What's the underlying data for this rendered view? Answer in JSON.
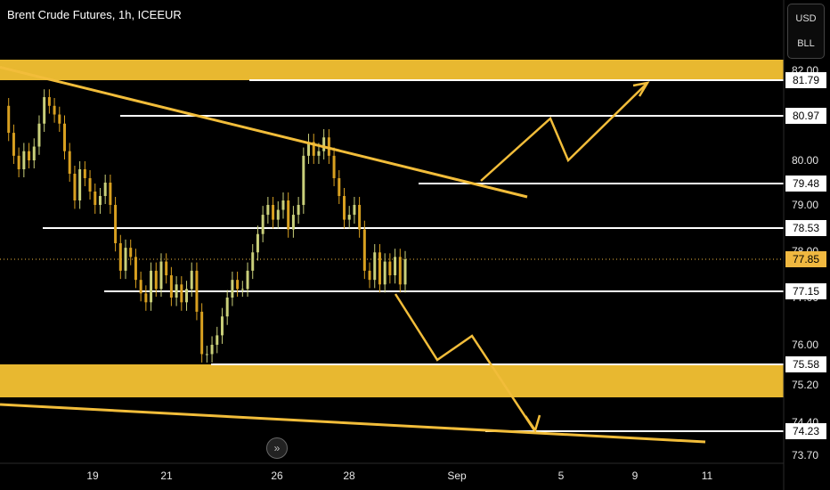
{
  "header": {
    "title": "Brent Crude Futures, 1h, ICEEUR"
  },
  "currency_box": {
    "unit": "USD",
    "measure": "BLL"
  },
  "nav": {
    "icon": "forward-arrows-icon"
  },
  "colors": {
    "zone": "#e8b830",
    "trend": "#f2bd3a",
    "level": "#ffffff",
    "bull": "#c9cf7a",
    "bear": "#d8a020",
    "current": "#f0b840"
  },
  "chart_data": {
    "type": "line",
    "symbol": "Brent Crude Futures",
    "timeframe": "1h",
    "exchange": "ICEEUR",
    "currency": "USD",
    "unit": "BLL",
    "y_axis": {
      "ticks": [
        "82.00",
        "80.00",
        "79.00",
        "78.00",
        "77.00",
        "76.00",
        "75.20",
        "74.40",
        "73.70"
      ]
    },
    "x_axis": {
      "ticks": [
        "19",
        "21",
        "26",
        "28",
        "Sep",
        "5",
        "9",
        "11"
      ]
    },
    "levels": [
      {
        "label": "81.79",
        "price": 81.79
      },
      {
        "label": "80.97",
        "price": 80.97
      },
      {
        "label": "79.48",
        "price": 79.48
      },
      {
        "label": "78.53",
        "price": 78.53
      },
      {
        "label": "77.15",
        "price": 77.15
      },
      {
        "label": "75.58",
        "price": 75.58
      },
      {
        "label": "74.23",
        "price": 74.23
      }
    ],
    "current_price": {
      "label": "77.85",
      "price": 77.85
    },
    "zones": [
      {
        "from": 81.79,
        "to": 82.2
      },
      {
        "from": 74.9,
        "to": 75.58
      }
    ],
    "price_series": [
      81.2,
      80.6,
      80.1,
      79.8,
      80.2,
      80.0,
      80.3,
      80.8,
      81.4,
      81.2,
      81.0,
      80.8,
      80.2,
      79.7,
      79.1,
      79.8,
      79.6,
      79.3,
      79.0,
      79.2,
      79.5,
      79.0,
      78.2,
      77.6,
      78.1,
      77.9,
      77.4,
      77.1,
      76.9,
      77.6,
      77.2,
      77.8,
      77.5,
      77.0,
      77.3,
      76.9,
      77.2,
      77.6,
      76.7,
      75.8,
      75.8,
      76.0,
      76.2,
      76.6,
      77.0,
      77.4,
      77.2,
      77.2,
      77.6,
      78.0,
      78.4,
      78.8,
      79.0,
      78.7,
      78.9,
      79.1,
      78.5,
      78.8,
      79.0,
      80.1,
      80.4,
      80.1,
      80.2,
      80.5,
      80.1,
      79.6,
      79.2,
      78.7,
      78.8,
      79.0,
      78.5,
      77.6,
      77.4,
      78.0,
      77.3,
      77.8,
      77.5,
      77.9,
      77.3,
      77.85
    ],
    "trendlines": [
      {
        "name": "descending resistance",
        "from": [
          "start",
          82.1
        ],
        "to": [
          "Sep 3",
          79.1
        ]
      },
      {
        "name": "lower support",
        "from": [
          "start",
          74.5
        ],
        "to": [
          "Sep 11",
          73.9
        ]
      }
    ],
    "projections": [
      {
        "direction": "up",
        "path": [
          79.5,
          81.0,
          80.2,
          81.8
        ]
      },
      {
        "direction": "down",
        "path": [
          77.0,
          75.7,
          76.1,
          74.3
        ]
      }
    ]
  }
}
